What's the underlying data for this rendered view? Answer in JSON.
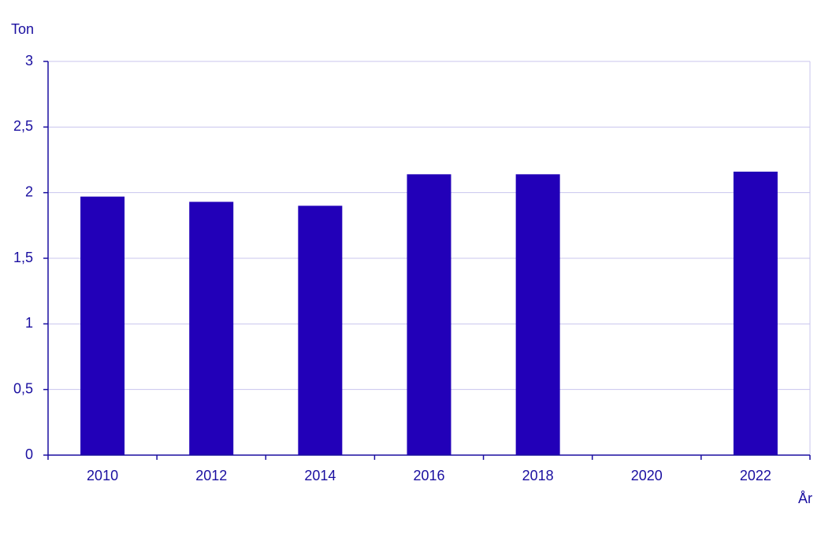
{
  "chart_data": {
    "type": "bar",
    "y_label": "Ton",
    "x_label": "År",
    "categories": [
      "2010",
      "2012",
      "2014",
      "2016",
      "2018",
      "2020",
      "2022"
    ],
    "values": [
      1.97,
      1.93,
      1.9,
      2.14,
      2.14,
      null,
      2.16
    ],
    "color": "#2200b8",
    "ylim": [
      0,
      3
    ],
    "yticks": [
      0,
      {
        "value": 0.5,
        "label": "0,5"
      },
      1,
      {
        "value": 1.5,
        "label": "1,5"
      },
      2,
      {
        "value": 2.5,
        "label": "2,5"
      },
      3
    ],
    "grid": true
  }
}
